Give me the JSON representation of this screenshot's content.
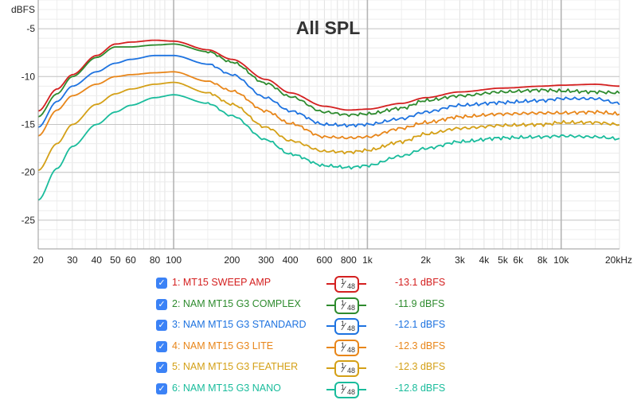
{
  "chart_data": {
    "type": "line",
    "title": "All SPL",
    "ylabel": "dBFS",
    "xscale": "log",
    "xlim": [
      20,
      20000
    ],
    "ylim": [
      -28,
      -2
    ],
    "grid": true,
    "x_ticks": [
      {
        "value": 20,
        "label": "20"
      },
      {
        "value": 30,
        "label": "30"
      },
      {
        "value": 40,
        "label": "40"
      },
      {
        "value": 50,
        "label": "50"
      },
      {
        "value": 60,
        "label": "60"
      },
      {
        "value": 80,
        "label": "80"
      },
      {
        "value": 100,
        "label": "100"
      },
      {
        "value": 200,
        "label": "200"
      },
      {
        "value": 300,
        "label": "300"
      },
      {
        "value": 400,
        "label": "400"
      },
      {
        "value": 600,
        "label": "600"
      },
      {
        "value": 800,
        "label": "800"
      },
      {
        "value": 1000,
        "label": "1k"
      },
      {
        "value": 2000,
        "label": "2k"
      },
      {
        "value": 3000,
        "label": "3k"
      },
      {
        "value": 4000,
        "label": "4k"
      },
      {
        "value": 5000,
        "label": "5k"
      },
      {
        "value": 6000,
        "label": "6k"
      },
      {
        "value": 8000,
        "label": "8k"
      },
      {
        "value": 10000,
        "label": "10k"
      },
      {
        "value": 20000,
        "label": "20kHz"
      }
    ],
    "y_ticks": [
      {
        "value": -5,
        "label": "-5"
      },
      {
        "value": -10,
        "label": "-10"
      },
      {
        "value": -15,
        "label": "-15"
      },
      {
        "value": -20,
        "label": "-20"
      },
      {
        "value": -25,
        "label": "-25"
      }
    ],
    "series": [
      {
        "name": "1: MT15 SWEEP AMP",
        "color": "#d42020",
        "smoothing": {
          "num": "1",
          "den": "48"
        },
        "value_label": "-13.1 dBFS",
        "x": [
          20,
          25,
          30,
          40,
          50,
          60,
          80,
          100,
          150,
          200,
          300,
          400,
          600,
          800,
          1000,
          1500,
          2000,
          3000,
          5000,
          8000,
          10000,
          15000,
          20000
        ],
        "y": [
          -13.6,
          -11.3,
          -9.8,
          -7.8,
          -6.6,
          -6.4,
          -6.2,
          -6.3,
          -7.2,
          -8.2,
          -10.3,
          -11.7,
          -13.1,
          -13.5,
          -13.4,
          -12.8,
          -12.2,
          -11.6,
          -11.2,
          -11.0,
          -10.9,
          -10.8,
          -11.0
        ]
      },
      {
        "name": "2: NAM MT15 G3 COMPLEX",
        "color": "#2e8b2e",
        "smoothing": {
          "num": "1",
          "den": "48"
        },
        "value_label": "-11.9 dBFS",
        "x": [
          20,
          25,
          30,
          40,
          50,
          60,
          80,
          100,
          150,
          200,
          300,
          400,
          600,
          800,
          1000,
          1500,
          2000,
          3000,
          5000,
          8000,
          10000,
          15000,
          20000
        ],
        "y": [
          -14.2,
          -11.8,
          -10.0,
          -8.0,
          -6.9,
          -6.9,
          -6.7,
          -6.6,
          -7.4,
          -8.5,
          -10.7,
          -12.1,
          -13.7,
          -14.0,
          -13.9,
          -13.3,
          -12.5,
          -12.0,
          -11.6,
          -11.4,
          -11.5,
          -11.6,
          -11.7
        ]
      },
      {
        "name": "3: NAM MT15 G3 STANDARD",
        "color": "#1e73e0",
        "smoothing": {
          "num": "1",
          "den": "48"
        },
        "value_label": "-12.1 dBFS",
        "x": [
          20,
          25,
          30,
          40,
          50,
          60,
          80,
          100,
          150,
          200,
          300,
          400,
          600,
          800,
          1000,
          1500,
          2000,
          3000,
          5000,
          8000,
          10000,
          15000,
          20000
        ],
        "y": [
          -15.3,
          -12.6,
          -11.0,
          -9.5,
          -8.6,
          -8.2,
          -7.8,
          -7.8,
          -8.7,
          -9.8,
          -12.2,
          -13.6,
          -15.0,
          -15.1,
          -15.0,
          -14.4,
          -13.7,
          -13.0,
          -12.7,
          -12.5,
          -12.3,
          -12.3,
          -12.8
        ]
      },
      {
        "name": "4: NAM MT15 G3 LITE",
        "color": "#e8861a",
        "smoothing": {
          "num": "1",
          "den": "48"
        },
        "value_label": "-12.3 dBFS",
        "x": [
          20,
          25,
          30,
          40,
          50,
          60,
          80,
          100,
          150,
          200,
          300,
          400,
          600,
          800,
          1000,
          1500,
          2000,
          3000,
          5000,
          8000,
          10000,
          15000,
          20000
        ],
        "y": [
          -16.2,
          -13.5,
          -12.0,
          -10.8,
          -10.0,
          -9.8,
          -9.6,
          -9.5,
          -10.5,
          -11.5,
          -13.6,
          -14.9,
          -16.3,
          -16.4,
          -16.3,
          -15.4,
          -14.8,
          -14.2,
          -13.9,
          -13.8,
          -13.8,
          -13.7,
          -13.9
        ]
      },
      {
        "name": "5: NAM MT15 G3 FEATHER",
        "color": "#d4a017",
        "smoothing": {
          "num": "1",
          "den": "48"
        },
        "value_label": "-12.3 dBFS",
        "x": [
          20,
          25,
          30,
          40,
          50,
          60,
          80,
          100,
          150,
          200,
          300,
          400,
          600,
          800,
          1000,
          1500,
          2000,
          3000,
          5000,
          8000,
          10000,
          15000,
          20000
        ],
        "y": [
          -19.8,
          -17.0,
          -15.0,
          -12.9,
          -11.8,
          -11.3,
          -10.8,
          -10.6,
          -11.7,
          -12.9,
          -15.3,
          -16.7,
          -17.8,
          -17.9,
          -17.7,
          -16.8,
          -16.0,
          -15.4,
          -15.1,
          -15.0,
          -14.8,
          -14.8,
          -15.0
        ]
      },
      {
        "name": "6: NAM MT15 G3 NANO",
        "color": "#1abc9c",
        "smoothing": {
          "num": "1",
          "den": "48"
        },
        "value_label": "-12.8 dBFS",
        "x": [
          20,
          25,
          30,
          40,
          50,
          60,
          80,
          100,
          150,
          200,
          300,
          400,
          600,
          800,
          1000,
          1500,
          2000,
          3000,
          5000,
          8000,
          10000,
          15000,
          20000
        ],
        "y": [
          -22.9,
          -19.6,
          -17.3,
          -15.0,
          -13.7,
          -13.0,
          -12.2,
          -11.9,
          -12.8,
          -14.1,
          -16.6,
          -18.1,
          -19.3,
          -19.5,
          -19.3,
          -18.3,
          -17.5,
          -16.8,
          -16.4,
          -16.3,
          -16.2,
          -16.3,
          -16.5
        ]
      }
    ]
  }
}
